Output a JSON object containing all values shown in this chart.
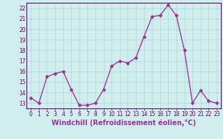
{
  "x": [
    0,
    1,
    2,
    3,
    4,
    5,
    6,
    7,
    8,
    9,
    10,
    11,
    12,
    13,
    14,
    15,
    16,
    17,
    18,
    19,
    20,
    21,
    22,
    23
  ],
  "y": [
    13.5,
    13.0,
    15.5,
    15.8,
    16.0,
    14.3,
    12.8,
    12.8,
    13.0,
    14.3,
    16.5,
    17.0,
    16.8,
    17.3,
    19.3,
    21.2,
    21.3,
    22.3,
    21.3,
    18.0,
    13.0,
    14.2,
    13.2,
    13.0
  ],
  "line_color": "#993399",
  "marker": "D",
  "marker_size": 2.5,
  "bg_color": "#d0eeee",
  "grid_color": "#b8d8d8",
  "xlabel": "Windchill (Refroidissement éolien,°C)",
  "xlim": [
    -0.5,
    23.5
  ],
  "ylim": [
    12.5,
    22.5
  ],
  "yticks": [
    13,
    14,
    15,
    16,
    17,
    18,
    19,
    20,
    21,
    22
  ],
  "xticks": [
    0,
    1,
    2,
    3,
    4,
    5,
    6,
    7,
    8,
    9,
    10,
    11,
    12,
    13,
    14,
    15,
    16,
    17,
    18,
    19,
    20,
    21,
    22,
    23
  ],
  "tick_label_fontsize": 5.5,
  "xlabel_fontsize": 7.0,
  "linewidth": 1.0
}
